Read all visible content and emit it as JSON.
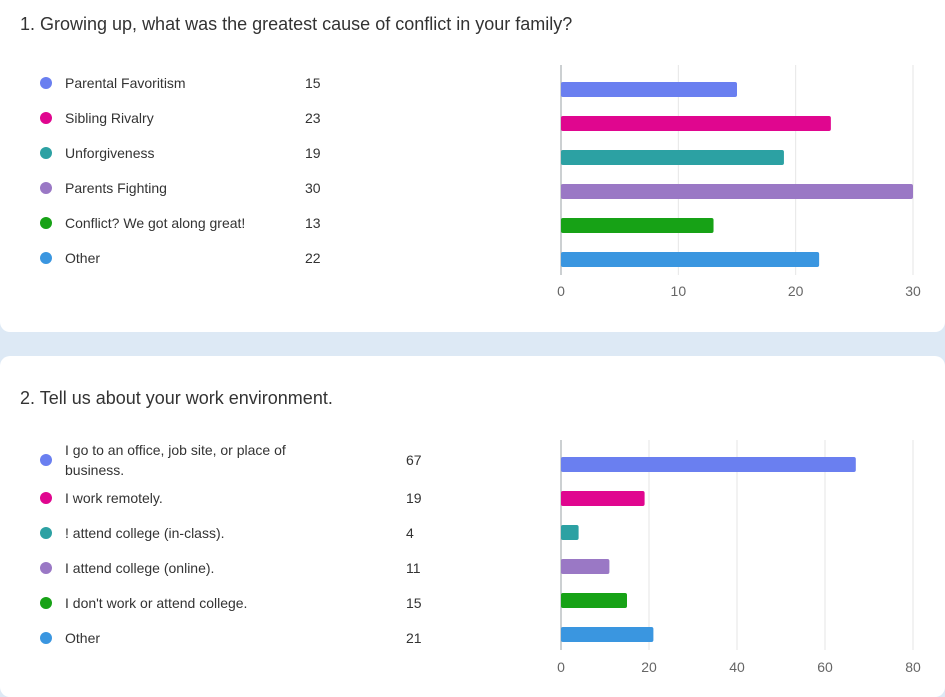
{
  "colors": [
    "#6a7ff0",
    "#e0068f",
    "#2ca1a3",
    "#9a78c5",
    "#17a216",
    "#3a96e0"
  ],
  "questions": [
    {
      "title": "1. Growing up, what was the greatest cause of conflict in your family?"
    },
    {
      "title": "2. Tell us about your work environment."
    }
  ],
  "chart_data": [
    {
      "type": "bar",
      "orientation": "horizontal",
      "title": "1. Growing up, what was the greatest cause of conflict in your family?",
      "categories": [
        "Parental Favoritism",
        "Sibling Rivalry",
        "Unforgiveness",
        "Parents Fighting",
        "Conflict? We got along great!",
        "Other"
      ],
      "values": [
        15,
        23,
        19,
        30,
        13,
        22
      ],
      "xlim": [
        0,
        30
      ],
      "xticks": [
        0,
        10,
        20,
        30
      ],
      "grid": true
    },
    {
      "type": "bar",
      "orientation": "horizontal",
      "title": "2. Tell us about your work environment.",
      "categories": [
        "I go to an office, job site, or place of business.",
        "I work remotely.",
        "! attend college (in-class).",
        "I attend college (online).",
        "I don't work or attend college.",
        "Other"
      ],
      "values": [
        67,
        19,
        4,
        11,
        15,
        21
      ],
      "xlim": [
        0,
        80
      ],
      "xticks": [
        0,
        20,
        40,
        60,
        80
      ],
      "grid": true
    }
  ]
}
